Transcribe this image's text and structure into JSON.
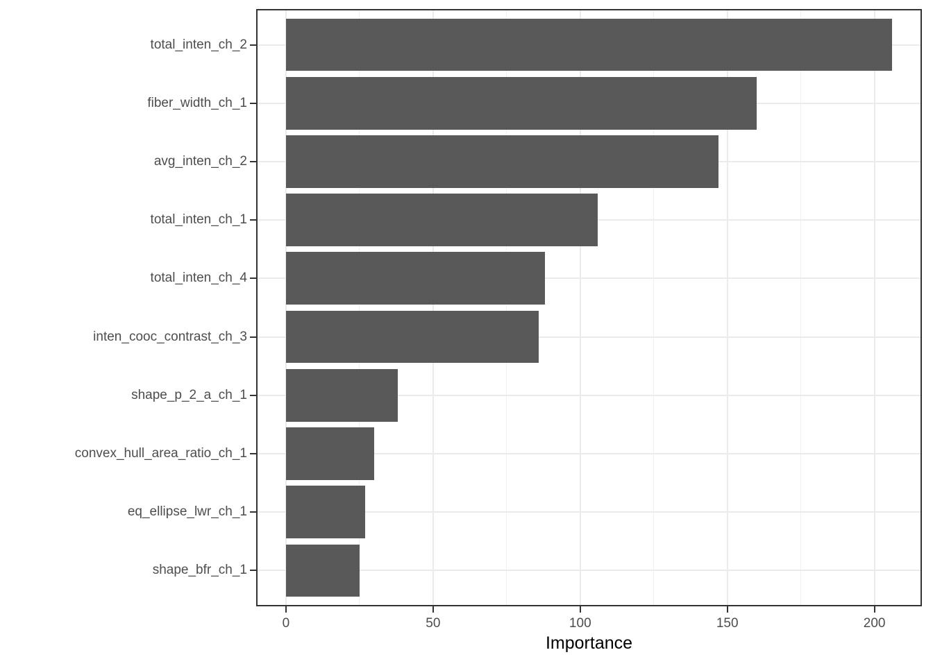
{
  "chart_data": {
    "type": "bar",
    "orientation": "horizontal",
    "title": "",
    "xlabel": "Importance",
    "ylabel": "",
    "categories": [
      "total_inten_ch_2",
      "fiber_width_ch_1",
      "avg_inten_ch_2",
      "total_inten_ch_1",
      "total_inten_ch_4",
      "inten_cooc_contrast_ch_3",
      "shape_p_2_a_ch_1",
      "convex_hull_area_ratio_ch_1",
      "eq_ellipse_lwr_ch_1",
      "shape_bfr_ch_1"
    ],
    "values": [
      206,
      160,
      147,
      106,
      88,
      86,
      38,
      30,
      27,
      25
    ],
    "x_ticks": [
      0,
      50,
      100,
      150,
      200
    ],
    "x_tick_labels": [
      "0",
      "50",
      "100",
      "150",
      "200"
    ],
    "x_minor_ticks": [
      25,
      75,
      125,
      175
    ],
    "xlim": [
      -9.9,
      215.9
    ],
    "bar_width_fraction": 0.9,
    "grid": "on",
    "legend": "none",
    "colors": {
      "bar": "#595959",
      "panel_border": "#333333",
      "grid_major": "#EBEBEB",
      "grid_minor": "#F1F1F1",
      "axis_tick": "#333333",
      "axis_text": "#4D4D4D",
      "axis_title": "#000000",
      "background": "#FFFFFF"
    }
  }
}
